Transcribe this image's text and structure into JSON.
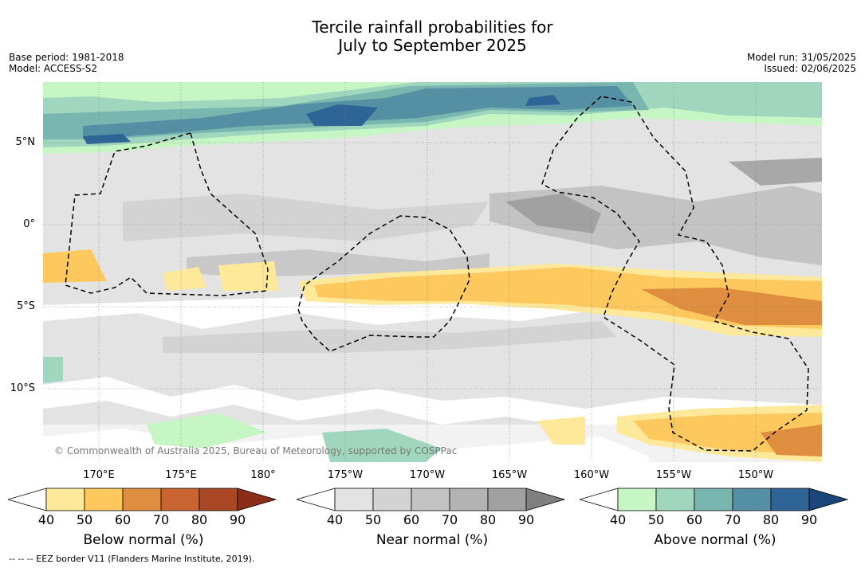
{
  "title_line1": "Tercile rainfall probabilities for",
  "title_line2": "July to September 2025",
  "base_period": "Base period: 1981-2018",
  "model": "Model: ACCESS-S2",
  "model_run": "Model run: 31/05/2025",
  "issued": "Issued: 02/06/2025",
  "copyright": "© Commonwealth of Australia 2025, Bureau of Meteorology, supported by COSPPac",
  "footer": "-- -- -- EEZ border V11 (Flanders Marine Institute, 2019).",
  "lat_labels": [
    "5°N",
    "0°",
    "5°S",
    "10°S"
  ],
  "lon_labels": [
    "170°E",
    "175°E",
    "180°",
    "175°W",
    "170°W",
    "165°W",
    "160°W",
    "155°W",
    "150°W"
  ],
  "colorbars": [
    {
      "label": "Below normal (%)",
      "ticks": [
        "40",
        "50",
        "60",
        "70",
        "80",
        "90"
      ],
      "colors": [
        "#ffffff",
        "#fee99b",
        "#fdc85e",
        "#df8d3e",
        "#c96432",
        "#a94724",
        "#8a2e1a"
      ]
    },
    {
      "label": "Near normal (%)",
      "ticks": [
        "40",
        "50",
        "60",
        "70",
        "80",
        "90"
      ],
      "colors": [
        "#ffffff",
        "#e3e3e3",
        "#d3d3d3",
        "#c3c3c3",
        "#b3b3b3",
        "#a1a1a1",
        "#7f7f7f"
      ]
    },
    {
      "label": "Above normal (%)",
      "ticks": [
        "40",
        "50",
        "60",
        "70",
        "80",
        "90"
      ],
      "colors": [
        "#ffffff",
        "#c7f6c5",
        "#a0d6bd",
        "#79b6b0",
        "#548fa3",
        "#2f6497",
        "#1b4679"
      ]
    }
  ]
}
